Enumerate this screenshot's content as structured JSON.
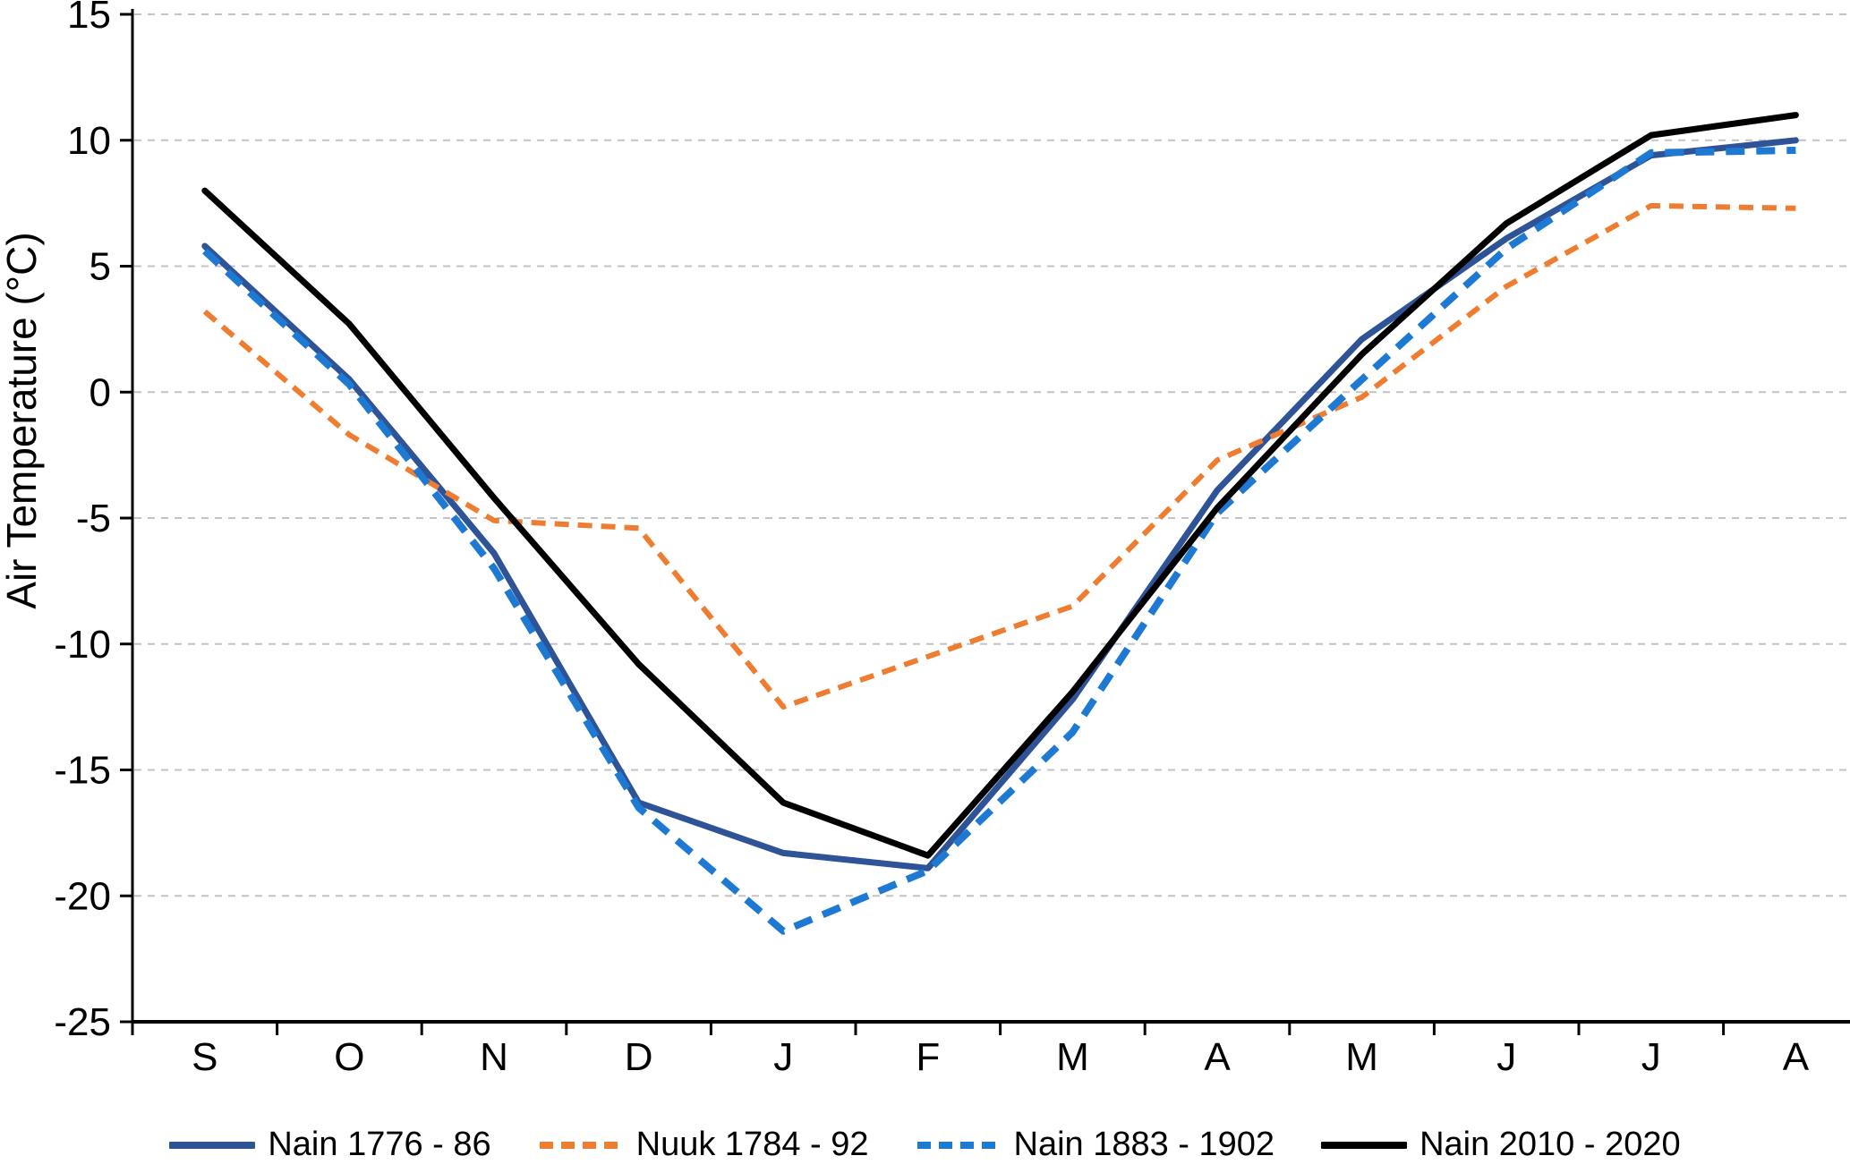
{
  "chart_data": {
    "type": "line",
    "title": "",
    "xlabel": "",
    "ylabel": "Air Temperature (°C)",
    "ylim": [
      -25,
      15
    ],
    "yticks": [
      15,
      10,
      5,
      0,
      -5,
      -10,
      -15,
      -20,
      -25
    ],
    "ytick_labels": [
      "15",
      "10",
      "5",
      "0",
      "-5",
      "-10",
      "-15",
      "-20",
      "-25"
    ],
    "categories": [
      "S",
      "O",
      "N",
      "D",
      "J",
      "F",
      "M",
      "A",
      "M",
      "J",
      "J",
      "A"
    ],
    "grid": "horizontal-dashed",
    "gridline_color": "#c3c3c3",
    "axis_color": "#000000",
    "legend_position": "bottom-center",
    "series": [
      {
        "name": "Nain 1776 - 86",
        "color": "#2e5396",
        "style": "solid",
        "width": 7,
        "values": [
          5.8,
          0.5,
          -6.4,
          -16.3,
          -18.3,
          -18.9,
          -12.2,
          -3.9,
          2.1,
          6.1,
          9.4,
          10.0
        ]
      },
      {
        "name": "Nuuk 1784 - 92",
        "color": "#ee7d31",
        "style": "dashed",
        "width": 6,
        "values": [
          3.2,
          -1.7,
          -5.1,
          -5.4,
          -12.5,
          -10.5,
          -8.5,
          -2.7,
          -0.2,
          4.2,
          7.4,
          7.3
        ]
      },
      {
        "name": "Nain 1883 - 1902",
        "color": "#1d79d2",
        "style": "dashed",
        "width": 8,
        "values": [
          5.6,
          0.3,
          -7.0,
          -16.5,
          -21.4,
          -19.0,
          -13.5,
          -4.8,
          0.5,
          5.7,
          9.5,
          9.6
        ]
      },
      {
        "name": "Nain 2010 - 2020",
        "color": "#000000",
        "style": "solid",
        "width": 7,
        "values": [
          8.0,
          2.7,
          -4.2,
          -10.8,
          -16.3,
          -18.4,
          -11.9,
          -4.6,
          1.5,
          6.7,
          10.2,
          11.0
        ]
      }
    ]
  }
}
